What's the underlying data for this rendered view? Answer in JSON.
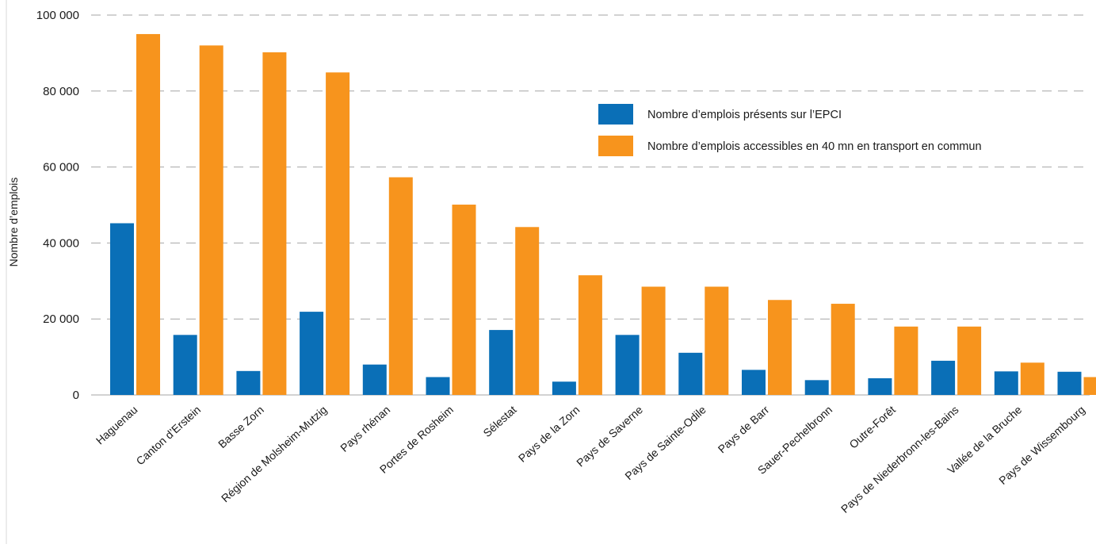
{
  "chart_data": {
    "type": "bar",
    "title": "",
    "xlabel": "",
    "ylabel": "Nombre d’emplois",
    "ylim": [
      0,
      100000
    ],
    "yticks": [
      {
        "value": 0,
        "label": "0"
      },
      {
        "value": 20000,
        "label": "20 000"
      },
      {
        "value": 40000,
        "label": "40 000"
      },
      {
        "value": 60000,
        "label": "60 000"
      },
      {
        "value": 80000,
        "label": "80 000"
      },
      {
        "value": 100000,
        "label": "100 000"
      }
    ],
    "grid": "horizontal dashed",
    "legend_position": "top-right",
    "categories": [
      "Haguenau",
      "Canton d’Erstein",
      "Basse Zorn",
      "Région de Molsheim-Mutzig",
      "Pays rhénan",
      "Portes de Rosheim",
      "Sélestat",
      "Pays de la Zorn",
      "Pays de Saverne",
      "Pays de Sainte-Odile",
      "Pays de Barr",
      "Sauer-Pechelbronn",
      "Outre-Forêt",
      "Pays de Niederbronn-les-Bains",
      "Vallée de la Bruche",
      "Pays de Wissembourg"
    ],
    "series": [
      {
        "name": "Nombre d’emplois présents sur l’EPCI",
        "color": "#0a6fb7",
        "values": [
          45200,
          15800,
          6300,
          21900,
          8000,
          4700,
          17100,
          3500,
          15800,
          11100,
          6600,
          3900,
          4400,
          9000,
          6200,
          6100
        ]
      },
      {
        "name": "Nombre d’emplois accessibles en 40 mn en transport en commun",
        "color": "#f7941d",
        "values": [
          95000,
          92000,
          90200,
          84900,
          57300,
          50100,
          44200,
          31500,
          28500,
          28500,
          25000,
          24000,
          18000,
          18000,
          8500,
          4700
        ]
      }
    ]
  }
}
